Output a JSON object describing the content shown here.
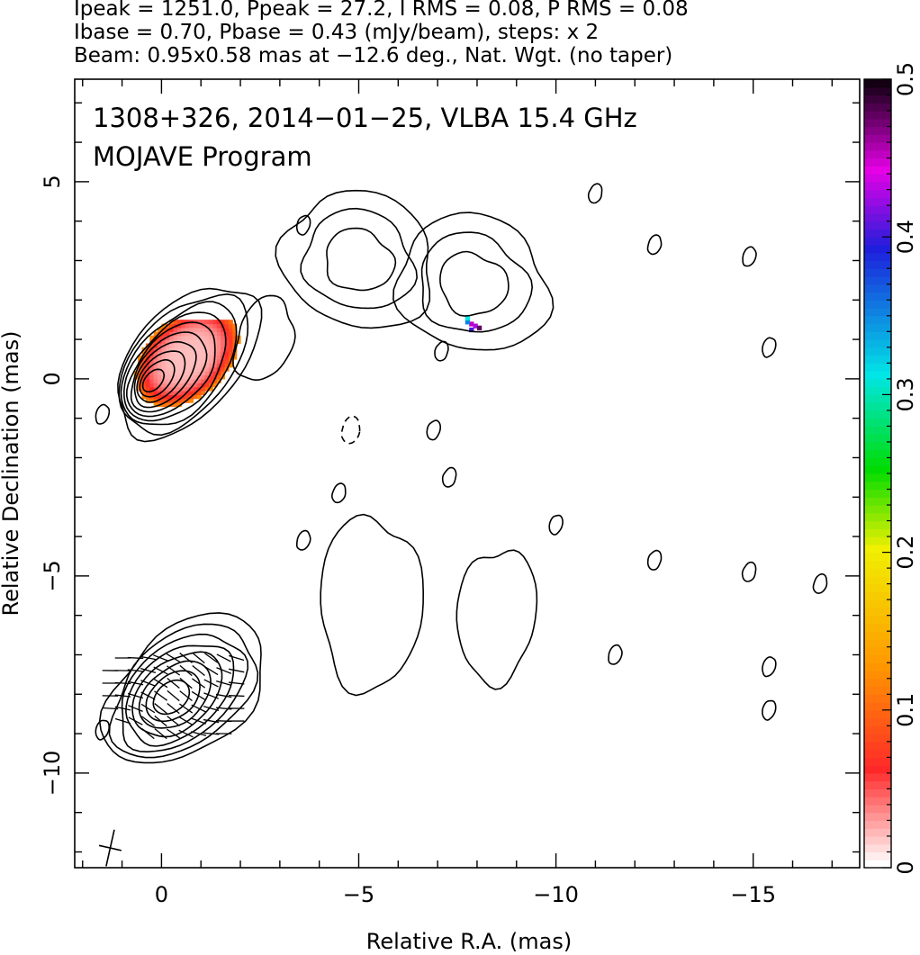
{
  "header": {
    "line1": "Ipeak = 1251.0, Ppeak = 27.2, I RMS = 0.08, P RMS = 0.08",
    "line2": "Ibase = 0.70, Pbase = 0.43 (mJy/beam), steps: x 2",
    "line3": "Beam: 0.95x0.58 mas at −12.6 deg., Nat. Wgt. (no taper)"
  },
  "chart_data": {
    "type": "heatmap",
    "title": "1308+326, 2014−01−25, VLBA 15.4 GHz",
    "subtitle": "MOJAVE Program",
    "xlabel": "Relative R.A. (mas)",
    "ylabel": "Relative Declination (mas)",
    "xlim": [
      2.2,
      -17.7
    ],
    "ylim": [
      -12.4,
      7.6
    ],
    "x_ticks": [
      0,
      -5,
      -10,
      -15
    ],
    "x_tick_labels": [
      "0",
      "−5",
      "−10",
      "−15"
    ],
    "y_ticks": [
      5,
      0,
      -5,
      -10
    ],
    "y_tick_labels": [
      "5",
      "0",
      "−5",
      "−10"
    ],
    "colorbar": {
      "range": [
        0,
        0.5
      ],
      "ticks": [
        0,
        0.1,
        0.2,
        0.3,
        0.4,
        0.5
      ],
      "tick_labels": [
        "0",
        "0.1",
        "0.2",
        "0.3",
        "0.4",
        "0.5"
      ]
    },
    "beam": {
      "major_mas": 0.95,
      "minor_mas": 0.58,
      "pa_deg": -12.6,
      "position_ra_dec": [
        1.3,
        -11.9
      ]
    },
    "core": {
      "ra": -0.2,
      "dec": 0.2
    },
    "core_contour_levels": 10,
    "polarization_core": {
      "ra": -0.6,
      "dec": 0.6,
      "fractional_pol_range": [
        0.0,
        0.12
      ]
    },
    "polarization_knot": {
      "ra": -7.9,
      "dec": 1.4,
      "fractional_pol_range": [
        0.33,
        0.5
      ]
    },
    "components": [
      {
        "ra": -5.0,
        "dec": 3.0,
        "levels": 3
      },
      {
        "ra": -7.9,
        "dec": 2.4,
        "levels": 3
      }
    ],
    "pol_panel": {
      "core": {
        "ra": -0.6,
        "dec": -7.9
      },
      "levels": 8
    }
  }
}
